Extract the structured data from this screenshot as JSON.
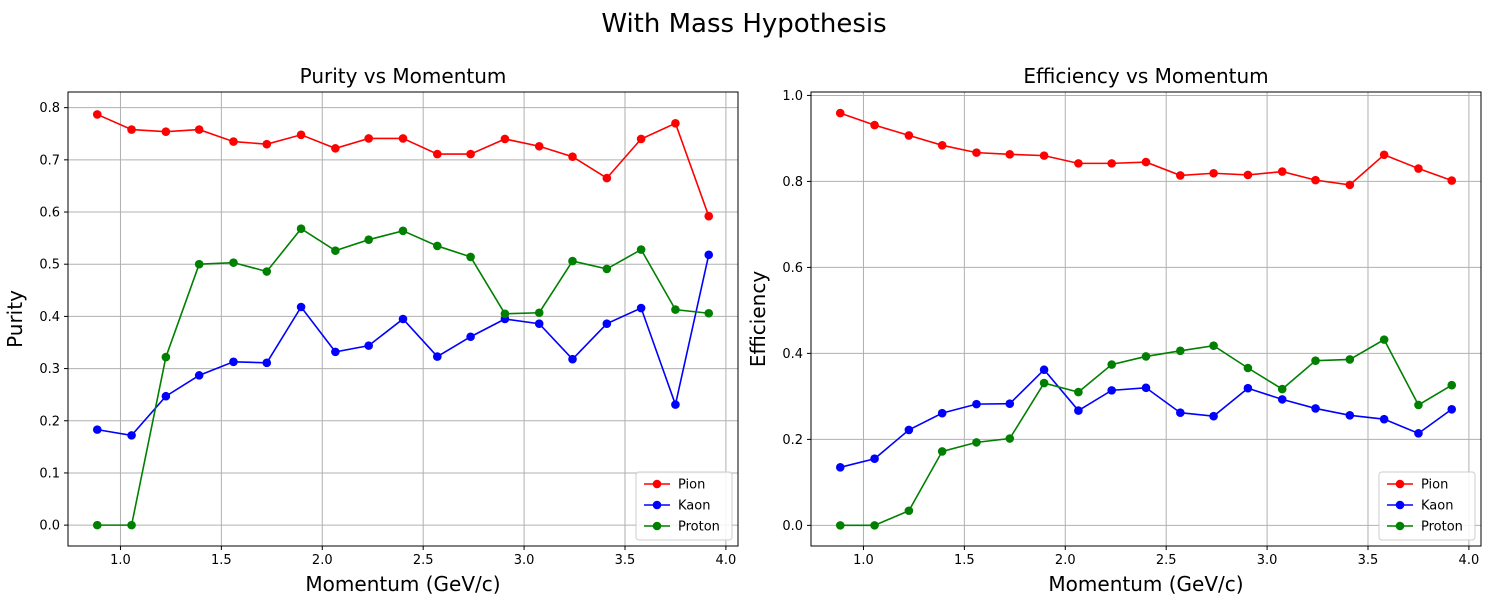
{
  "figure": {
    "title": "With Mass Hypothesis"
  },
  "chart_data": [
    {
      "type": "line",
      "title": "Purity vs Momentum",
      "xlabel": "Momentum (GeV/c)",
      "ylabel": "Purity",
      "xlim": [
        0.74,
        4.06
      ],
      "ylim": [
        -0.04,
        0.83
      ],
      "xticks": [
        "1.0",
        "1.5",
        "2.0",
        "2.5",
        "3.0",
        "3.5",
        "4.0"
      ],
      "yticks": [
        "0.0",
        "0.1",
        "0.2",
        "0.3",
        "0.4",
        "0.5",
        "0.6",
        "0.7",
        "0.8"
      ],
      "grid": true,
      "legend": "lower-right",
      "x": [
        0.885,
        1.055,
        1.225,
        1.39,
        1.56,
        1.725,
        1.895,
        2.065,
        2.23,
        2.4,
        2.57,
        2.735,
        2.905,
        3.075,
        3.24,
        3.41,
        3.58,
        3.75,
        3.915
      ],
      "series": [
        {
          "name": "Pion",
          "color": "#ff0000",
          "values": [
            0.787,
            0.758,
            0.754,
            0.758,
            0.735,
            0.73,
            0.748,
            0.722,
            0.741,
            0.741,
            0.711,
            0.711,
            0.74,
            0.726,
            0.706,
            0.665,
            0.74,
            0.77,
            0.592
          ]
        },
        {
          "name": "Kaon",
          "color": "#0000ff",
          "values": [
            0.183,
            0.172,
            0.247,
            0.287,
            0.313,
            0.311,
            0.418,
            0.332,
            0.344,
            0.395,
            0.323,
            0.361,
            0.395,
            0.386,
            0.318,
            0.386,
            0.416,
            0.231,
            0.518
          ]
        },
        {
          "name": "Proton",
          "color": "#008000",
          "values": [
            0.0,
            0.0,
            0.322,
            0.5,
            0.503,
            0.486,
            0.568,
            0.526,
            0.547,
            0.564,
            0.535,
            0.514,
            0.405,
            0.407,
            0.506,
            0.491,
            0.528,
            0.413,
            0.406
          ]
        }
      ]
    },
    {
      "type": "line",
      "title": "Efficiency vs Momentum",
      "xlabel": "Momentum (GeV/c)",
      "ylabel": "Efficiency",
      "xlim": [
        0.74,
        4.06
      ],
      "ylim": [
        -0.048,
        1.008
      ],
      "xticks": [
        "1.0",
        "1.5",
        "2.0",
        "2.5",
        "3.0",
        "3.5",
        "4.0"
      ],
      "yticks": [
        "0.0",
        "0.2",
        "0.4",
        "0.6",
        "0.8",
        "1.0"
      ],
      "grid": true,
      "legend": "lower-right",
      "x": [
        0.885,
        1.055,
        1.225,
        1.39,
        1.56,
        1.725,
        1.895,
        2.065,
        2.23,
        2.4,
        2.57,
        2.735,
        2.905,
        3.075,
        3.24,
        3.41,
        3.58,
        3.75,
        3.915
      ],
      "series": [
        {
          "name": "Pion",
          "color": "#ff0000",
          "values": [
            0.959,
            0.931,
            0.907,
            0.884,
            0.867,
            0.863,
            0.86,
            0.842,
            0.842,
            0.845,
            0.814,
            0.819,
            0.815,
            0.823,
            0.803,
            0.792,
            0.862,
            0.83,
            0.802
          ]
        },
        {
          "name": "Kaon",
          "color": "#0000ff",
          "values": [
            0.135,
            0.155,
            0.222,
            0.261,
            0.282,
            0.283,
            0.362,
            0.267,
            0.314,
            0.32,
            0.262,
            0.254,
            0.319,
            0.293,
            0.272,
            0.256,
            0.247,
            0.214,
            0.27
          ]
        },
        {
          "name": "Proton",
          "color": "#008000",
          "values": [
            0.0,
            0.0,
            0.034,
            0.172,
            0.193,
            0.202,
            0.331,
            0.31,
            0.374,
            0.393,
            0.406,
            0.418,
            0.366,
            0.317,
            0.383,
            0.386,
            0.432,
            0.28,
            0.326
          ]
        }
      ]
    }
  ]
}
